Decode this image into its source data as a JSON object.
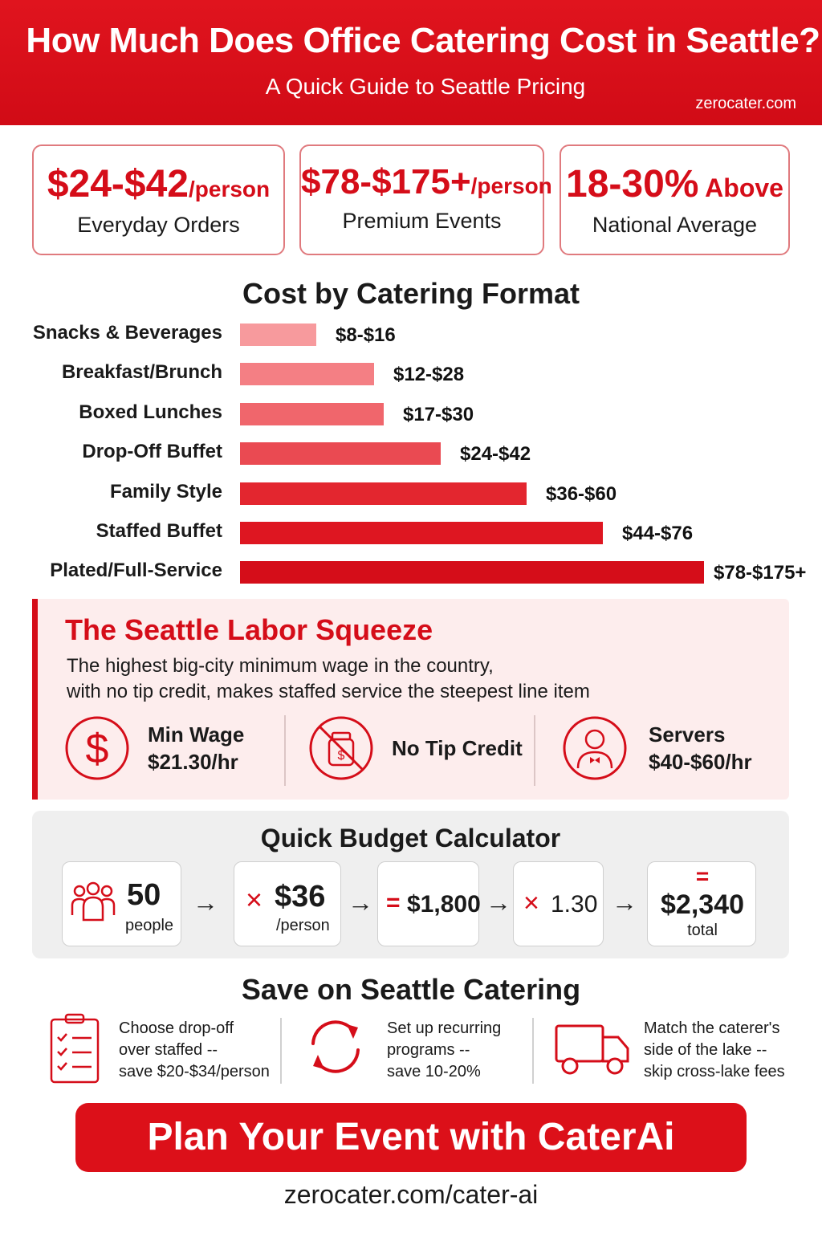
{
  "header": {
    "title": "How Much Does Office Catering Cost in Seattle?",
    "subtitle": "A Quick Guide to Seattle Pricing",
    "site": "zerocater.com"
  },
  "stats": [
    {
      "value": "$24-$42",
      "unit": "/person",
      "label": "Everyday Orders"
    },
    {
      "value": "$78-$175+",
      "unit": "/person",
      "label": "Premium Events"
    },
    {
      "value": "18-30%",
      "unit": " Above",
      "label": "National Average"
    }
  ],
  "chart_data": {
    "type": "bar",
    "orientation": "horizontal",
    "title": "Cost by Catering Format",
    "categories": [
      "Snacks & Beverages",
      "Breakfast/Brunch",
      "Boxed Lunches",
      "Drop-Off Buffet",
      "Family Style",
      "Staffed Buffet",
      "Plated/Full-Service"
    ],
    "value_labels": [
      "$8-$16",
      "$12-$28",
      "$17-$30",
      "$24-$42",
      "$36-$60",
      "$44-$76",
      "$78-$175+"
    ],
    "ranges": [
      [
        8,
        16
      ],
      [
        12,
        28
      ],
      [
        17,
        30
      ],
      [
        24,
        42
      ],
      [
        36,
        60
      ],
      [
        44,
        76
      ],
      [
        78,
        175
      ]
    ],
    "bar_colors": [
      "#f79a9d",
      "#f47f84",
      "#f0666c",
      "#ea4a52",
      "#e3262f",
      "#de1621",
      "#d50d19"
    ],
    "grid": false,
    "legend": "none"
  },
  "labor": {
    "title": "The Seattle Labor Squeeze",
    "desc_line1": "The highest big-city minimum wage in the country,",
    "desc_line2": "with no tip credit, makes staffed service the steepest line item",
    "items": [
      {
        "icon": "dollar-icon",
        "line1": "Min Wage",
        "line2": "$21.30/hr"
      },
      {
        "icon": "no-tip-jar-icon",
        "line1": "No Tip Credit",
        "line2": ""
      },
      {
        "icon": "server-icon",
        "line1": "Servers",
        "line2": "$40-$60/hr"
      }
    ]
  },
  "calculator": {
    "title": "Quick Budget Calculator",
    "people_count": "50",
    "people_label": "people",
    "rate_op": "×",
    "rate": "$36",
    "rate_unit": "/person",
    "subtotal_op": "=",
    "subtotal": "$1,800",
    "multiplier_op": "×",
    "multiplier": "1.30",
    "total_op": "=",
    "total": "$2,340",
    "total_label": "total",
    "arrow": "→"
  },
  "savings": {
    "title": "Save on Seattle Catering",
    "tips": [
      {
        "icon": "clipboard-checklist-icon",
        "lines": [
          "Choose drop-off",
          "over staffed --",
          "save $20-$34/person"
        ]
      },
      {
        "icon": "recurring-arrows-icon",
        "lines": [
          "Set up recurring",
          "programs --",
          "save 10-20%"
        ]
      },
      {
        "icon": "delivery-truck-icon",
        "lines": [
          "Match the caterer's",
          "side of the lake --",
          "skip cross-lake fees"
        ]
      }
    ]
  },
  "cta": {
    "label": "Plan Your Event with CaterAi"
  },
  "footer": {
    "url": "zerocater.com/cater-ai"
  },
  "colors": {
    "brand_red": "#d50d19",
    "labor_bg": "#fdeded",
    "calc_bg": "#efefef"
  }
}
